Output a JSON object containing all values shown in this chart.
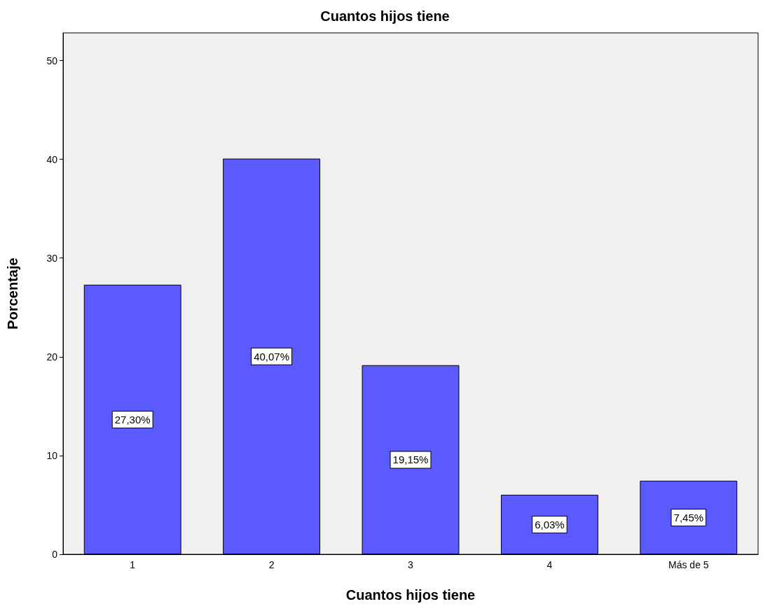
{
  "chart_data": {
    "type": "bar",
    "title": "Cuantos hijos tiene",
    "xlabel": "Cuantos hijos tiene",
    "ylabel": "Porcentaje",
    "categories": [
      "1",
      "2",
      "3",
      "4",
      "Más de 5"
    ],
    "values": [
      27.3,
      40.07,
      19.15,
      6.03,
      7.45
    ],
    "value_labels": [
      "27,30%",
      "40,07%",
      "19,15%",
      "6,03%",
      "7,45%"
    ],
    "color": "#5a5aff",
    "ylim": [
      0,
      52.8
    ],
    "yticks": [
      0,
      10,
      20,
      30,
      40,
      50
    ],
    "grid": false
  }
}
